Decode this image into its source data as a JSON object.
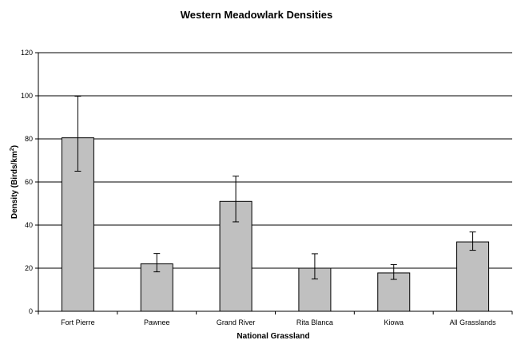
{
  "chart_data": {
    "type": "bar",
    "title": "Western Meadowlark Densities",
    "xlabel": "National Grassland",
    "ylabel_main": "Density (Birds/km",
    "ylabel_sup": "2",
    "ylabel_close": ")",
    "ylim": [
      0,
      120
    ],
    "yticks": [
      0,
      20,
      40,
      60,
      80,
      100,
      120
    ],
    "grid": "horizontal",
    "categories": [
      "Fort Pierre",
      "Pawnee",
      "Grand River",
      "Rita Blanca",
      "Kiowa",
      "All Grasslands"
    ],
    "values": [
      80.5,
      22,
      51,
      20,
      17.8,
      32.2
    ],
    "error_low": [
      65,
      18.3,
      41.5,
      15,
      14.8,
      28.3
    ],
    "error_high": [
      99.8,
      26.8,
      62.7,
      26.7,
      21.7,
      36.8
    ],
    "bar_color": "#C0C0C0",
    "bar_stroke": "#000000",
    "gridline_color": "#000000"
  }
}
